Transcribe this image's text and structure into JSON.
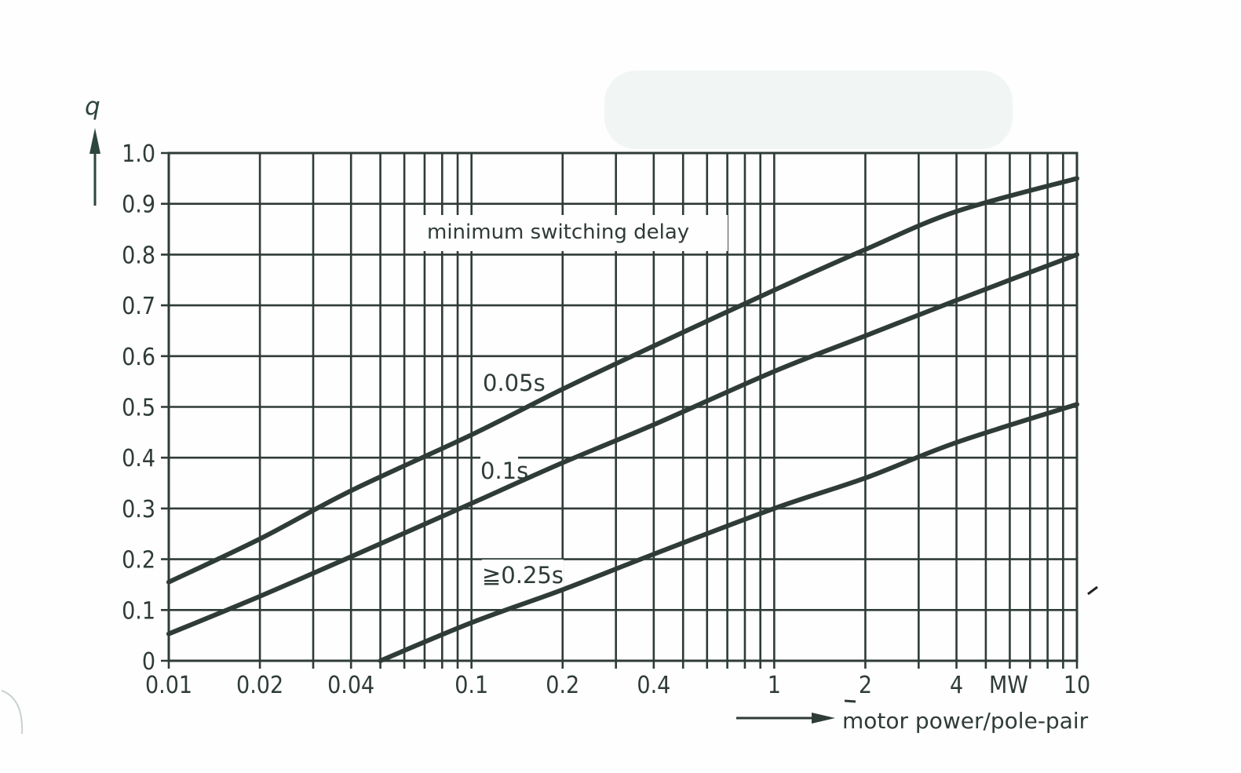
{
  "chart_data": {
    "type": "line",
    "title": "",
    "annotation": "minimum switching delay",
    "xlabel": "motor power/pole-pair",
    "xunit": "MW",
    "ylabel": "q",
    "xscale": "log",
    "xlim": [
      0.01,
      10
    ],
    "ylim": [
      0,
      1.0
    ],
    "grid": true,
    "x_tick_labels": [
      "0.01",
      "0.02",
      "0.04",
      "0.1",
      "0.2",
      "0.4",
      "1",
      "2",
      "4",
      "10"
    ],
    "x_ticks": [
      0.01,
      0.02,
      0.04,
      0.1,
      0.2,
      0.4,
      1,
      2,
      4,
      10
    ],
    "y_tick_labels": [
      "0",
      "0.1",
      "0.2",
      "0.3",
      "0.4",
      "0.5",
      "0.6",
      "0.7",
      "0.8",
      "0.9",
      "1.0"
    ],
    "y_ticks": [
      0,
      0.1,
      0.2,
      0.3,
      0.4,
      0.5,
      0.6,
      0.7,
      0.8,
      0.9,
      1.0
    ],
    "series": [
      {
        "name": "0.05s",
        "label": "0.05s",
        "x": [
          0.01,
          0.02,
          0.04,
          0.1,
          0.2,
          0.4,
          1,
          2,
          4,
          10
        ],
        "values": [
          0.155,
          0.24,
          0.335,
          0.445,
          0.535,
          0.62,
          0.73,
          0.81,
          0.885,
          0.95
        ]
      },
      {
        "name": "0.1s",
        "label": "0.1s",
        "x": [
          0.01,
          0.02,
          0.04,
          0.1,
          0.2,
          0.4,
          1,
          2,
          4,
          10
        ],
        "values": [
          0.053,
          0.127,
          0.205,
          0.31,
          0.39,
          0.465,
          0.57,
          0.64,
          0.71,
          0.8
        ]
      },
      {
        "name": ">=0.25s",
        "label": "≧0.25s",
        "x": [
          0.05,
          0.1,
          0.2,
          0.4,
          1,
          2,
          4,
          10
        ],
        "values": [
          0.0,
          0.075,
          0.14,
          0.21,
          0.3,
          0.36,
          0.43,
          0.505
        ]
      }
    ],
    "legend": "none (inline curve labels)"
  },
  "labels": {
    "y_axis_symbol": "q",
    "annotation": "minimum switching delay",
    "x_axis_title": "motor power/pole-pair",
    "x_unit": "MW",
    "curve_labels": [
      "0.05s",
      "0.1s",
      "≧0.25s"
    ]
  },
  "colors": {
    "ink": "#2f3b37",
    "paper": "#fdfefd"
  }
}
